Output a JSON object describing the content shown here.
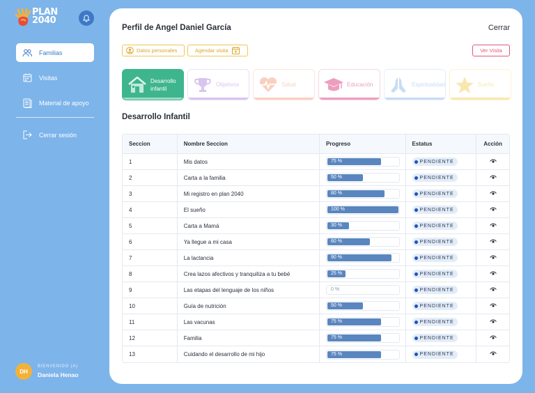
{
  "sidebar": {
    "logo_text": "PLAN\n2040",
    "nav": [
      {
        "label": "Familias",
        "icon": "users-icon",
        "active": true
      },
      {
        "label": "Visitas",
        "icon": "calendar-icon",
        "active": false
      },
      {
        "label": "Material de apoyo",
        "icon": "document-icon",
        "active": false
      }
    ],
    "logout_label": "Cerrar sesión",
    "welcome_label": "BIENVENIDO (A)",
    "user_name": "Daniela Henao",
    "user_initials": "DH"
  },
  "header": {
    "title": "Perfil de Angel Daniel García",
    "close_label": "Cerrar"
  },
  "actions": {
    "personal_data_label": "Datos personales",
    "schedule_visit_label": "Agendar visita",
    "view_visit_label": "Ver Visita"
  },
  "tabs": [
    {
      "label": "Desarrollo infantil",
      "color": "#3fb58e",
      "active": true,
      "progress": 1.0
    },
    {
      "label": "Objetivos",
      "color": "#9b6ad6",
      "active": false,
      "progress": 1.0
    },
    {
      "label": "Salud",
      "color": "#f0865c",
      "active": false,
      "progress": 1.0
    },
    {
      "label": "Educación",
      "color": "#e0508a",
      "active": false,
      "progress": 1.0
    },
    {
      "label": "Espiritualidad",
      "color": "#6fa6e8",
      "active": false,
      "progress": 1.0
    },
    {
      "label": "Sueño",
      "color": "#f2c233",
      "active": false,
      "progress": 1.0
    }
  ],
  "section_title": "Desarrollo Infantil",
  "table": {
    "headers": [
      "Seccion",
      "Nombre Seccion",
      "Progreso",
      "Estatus",
      "Acción"
    ],
    "rows": [
      {
        "num": "1",
        "name": "Mis datos",
        "progress": 75,
        "progress_label": "75 %",
        "status": "PENDIENTE"
      },
      {
        "num": "2",
        "name": "Carta a la familia",
        "progress": 50,
        "progress_label": "50 %",
        "status": "PENDIENTE"
      },
      {
        "num": "3",
        "name": "Mi registro en plan 2040",
        "progress": 80,
        "progress_label": "80 %",
        "status": "PENDIENTE"
      },
      {
        "num": "4",
        "name": "El sueño",
        "progress": 100,
        "progress_label": "100 %",
        "status": "PENDIENTE"
      },
      {
        "num": "5",
        "name": "Carta a Mamá",
        "progress": 30,
        "progress_label": "30 %",
        "status": "PENDIENTE"
      },
      {
        "num": "6",
        "name": "Ya llegue a mi casa",
        "progress": 60,
        "progress_label": "60 %",
        "status": "PENDIENTE"
      },
      {
        "num": "7",
        "name": "La lactancia",
        "progress": 90,
        "progress_label": "90 %",
        "status": "PENDIENTE"
      },
      {
        "num": "8",
        "name": "Crea lazos afectivos y tranquiliza a tu bebé",
        "progress": 25,
        "progress_label": "25 %",
        "status": "PENDIENTE"
      },
      {
        "num": "9",
        "name": "Las etapas del lenguaje de los niños",
        "progress": 0,
        "progress_label": "0 %",
        "status": "PENDIENTE"
      },
      {
        "num": "10",
        "name": "Guía de nutrición",
        "progress": 50,
        "progress_label": "50 %",
        "status": "PENDIENTE"
      },
      {
        "num": "11",
        "name": "Las vacunas",
        "progress": 75,
        "progress_label": "75 %",
        "status": "PENDIENTE"
      },
      {
        "num": "12",
        "name": "Familia",
        "progress": 75,
        "progress_label": "75 %",
        "status": "PENDIENTE"
      },
      {
        "num": "13",
        "name": "Cuidando el desarrollo de mi hijo",
        "progress": 75,
        "progress_label": "75 %",
        "status": "PENDIENTE"
      }
    ]
  }
}
